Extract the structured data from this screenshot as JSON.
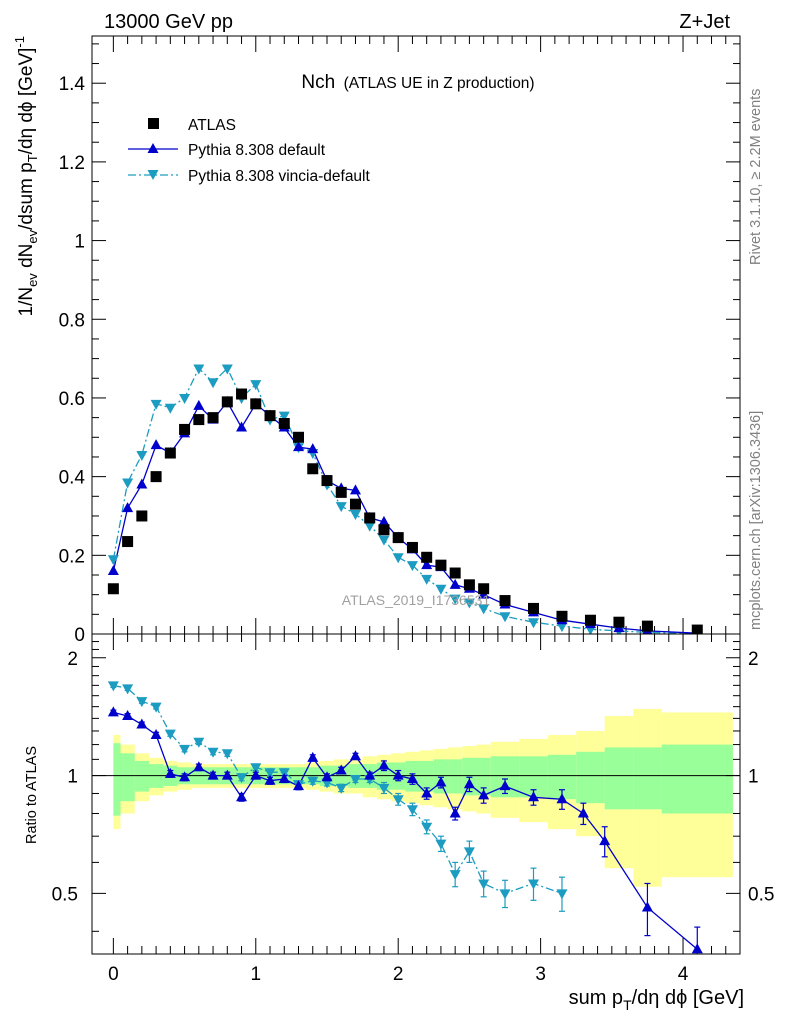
{
  "header": {
    "left": "13000 GeV pp",
    "right": "Z+Jet"
  },
  "side": {
    "rivet": "Rivet 3.1.10, ≥ 2.2M events",
    "mcplots": "mcplots.cern.ch [arXiv:1306.3436]"
  },
  "watermark": "ATLAS_2019_I1736531",
  "colors": {
    "atlas": "#000000",
    "default": "#0000cc",
    "vincia": "#1c9cc0",
    "band_inner": "#99ff99",
    "band_outer": "#ffff99"
  },
  "chart_data": [
    {
      "type": "scatter",
      "title": "Nch",
      "subtitle": "(ATLAS UE in Z production)",
      "ylabel_parts": [
        "1/N",
        "ev",
        " dN",
        "ev",
        "/dsum p",
        "T",
        "/dη dϕ  [GeV]",
        "-1"
      ],
      "xlim": [
        -0.15,
        4.4
      ],
      "ylim": [
        0,
        1.52
      ],
      "yticks": [
        "0",
        "0.2",
        "0.4",
        "0.6",
        "0.8",
        "1",
        "1.2",
        "1.4"
      ],
      "legend_position": "top-left",
      "series": [
        {
          "name": "ATLAS",
          "marker": "square",
          "x": [
            0,
            0.1,
            0.2,
            0.3,
            0.4,
            0.5,
            0.6,
            0.7,
            0.8,
            0.9,
            1.0,
            1.1,
            1.2,
            1.3,
            1.4,
            1.5,
            1.6,
            1.7,
            1.8,
            1.9,
            2.0,
            2.1,
            2.2,
            2.3,
            2.4,
            2.5,
            2.6,
            2.75,
            2.95,
            3.15,
            3.35,
            3.55,
            3.75,
            4.1
          ],
          "values": [
            0.115,
            0.235,
            0.3,
            0.4,
            0.46,
            0.52,
            0.545,
            0.55,
            0.59,
            0.61,
            0.585,
            0.555,
            0.535,
            0.5,
            0.42,
            0.39,
            0.36,
            0.33,
            0.295,
            0.265,
            0.245,
            0.22,
            0.195,
            0.175,
            0.155,
            0.125,
            0.115,
            0.085,
            0.065,
            0.045,
            0.035,
            0.03,
            0.02,
            0.01
          ]
        },
        {
          "name": "Pythia 8.308 default",
          "marker": "triangle-up",
          "line": "solid",
          "x": [
            0,
            0.1,
            0.2,
            0.3,
            0.4,
            0.5,
            0.6,
            0.7,
            0.8,
            0.9,
            1.0,
            1.1,
            1.2,
            1.3,
            1.4,
            1.5,
            1.6,
            1.7,
            1.8,
            1.9,
            2.0,
            2.1,
            2.2,
            2.3,
            2.4,
            2.5,
            2.6,
            2.75,
            2.95,
            3.15,
            3.35,
            3.55,
            3.75,
            4.1
          ],
          "values": [
            0.16,
            0.32,
            0.38,
            0.48,
            0.46,
            0.51,
            0.58,
            0.545,
            0.59,
            0.525,
            0.585,
            0.555,
            0.525,
            0.475,
            0.47,
            0.39,
            0.37,
            0.365,
            0.295,
            0.285,
            0.245,
            0.215,
            0.175,
            0.17,
            0.125,
            0.115,
            0.1,
            0.075,
            0.055,
            0.035,
            0.025,
            0.015,
            0.008,
            0.002
          ]
        },
        {
          "name": "Pythia 8.308 vincia-default",
          "marker": "triangle-down",
          "line": "dashdot",
          "x": [
            0,
            0.1,
            0.2,
            0.3,
            0.4,
            0.5,
            0.6,
            0.7,
            0.8,
            0.9,
            1.0,
            1.1,
            1.2,
            1.3,
            1.4,
            1.5,
            1.6,
            1.7,
            1.8,
            1.9,
            2.0,
            2.1,
            2.2,
            2.3,
            2.4,
            2.5,
            2.6,
            2.75,
            2.95,
            3.15,
            3.35,
            3.55,
            3.75,
            4.1
          ],
          "values": [
            0.19,
            0.385,
            0.455,
            0.585,
            0.575,
            0.6,
            0.675,
            0.64,
            0.675,
            0.6,
            0.635,
            0.545,
            0.555,
            0.475,
            0.46,
            0.38,
            0.325,
            0.305,
            0.275,
            0.24,
            0.195,
            0.175,
            0.14,
            0.115,
            0.09,
            0.08,
            0.065,
            0.045,
            0.03,
            0.02,
            0.012,
            0.008,
            0.004,
            0.001
          ]
        }
      ]
    },
    {
      "type": "scatter",
      "ylabel": "Ratio to ATLAS",
      "xlabel_parts": [
        "sum p",
        "T",
        "/dη dϕ [GeV]"
      ],
      "xlim": [
        -0.15,
        4.4
      ],
      "ylim": [
        0.35,
        2.3
      ],
      "yticks": [
        "0.5",
        "1",
        "2"
      ],
      "xticks": [
        "0",
        "1",
        "2",
        "3",
        "4"
      ],
      "bands": {
        "edges": [
          0,
          0.05,
          0.15,
          0.25,
          0.35,
          0.45,
          0.55,
          0.65,
          0.75,
          0.85,
          0.95,
          1.05,
          1.15,
          1.25,
          1.35,
          1.45,
          1.55,
          1.65,
          1.75,
          1.85,
          1.95,
          2.05,
          2.15,
          2.25,
          2.35,
          2.45,
          2.55,
          2.65,
          2.85,
          3.05,
          3.25,
          3.45,
          3.65,
          3.85,
          4.35
        ],
        "inner": [
          0.21,
          0.14,
          0.09,
          0.07,
          0.06,
          0.05,
          0.05,
          0.05,
          0.05,
          0.05,
          0.05,
          0.05,
          0.05,
          0.05,
          0.05,
          0.06,
          0.06,
          0.07,
          0.07,
          0.08,
          0.08,
          0.09,
          0.09,
          0.1,
          0.1,
          0.11,
          0.11,
          0.12,
          0.12,
          0.13,
          0.15,
          0.18,
          0.18,
          0.2
        ],
        "outer": [
          0.27,
          0.2,
          0.14,
          0.11,
          0.09,
          0.08,
          0.07,
          0.07,
          0.07,
          0.07,
          0.07,
          0.07,
          0.07,
          0.07,
          0.08,
          0.09,
          0.1,
          0.1,
          0.12,
          0.13,
          0.14,
          0.15,
          0.16,
          0.17,
          0.18,
          0.19,
          0.2,
          0.22,
          0.24,
          0.27,
          0.3,
          0.42,
          0.48,
          0.45
        ]
      },
      "series": [
        {
          "name": "Pythia 8.308 default",
          "marker": "triangle-up",
          "line": "solid",
          "x": [
            0,
            0.1,
            0.2,
            0.3,
            0.4,
            0.5,
            0.6,
            0.7,
            0.8,
            0.9,
            1.0,
            1.1,
            1.2,
            1.3,
            1.4,
            1.5,
            1.6,
            1.7,
            1.8,
            1.9,
            2.0,
            2.1,
            2.2,
            2.3,
            2.4,
            2.5,
            2.6,
            2.75,
            2.95,
            3.15,
            3.3,
            3.45,
            3.75,
            4.1
          ],
          "values": [
            1.45,
            1.42,
            1.35,
            1.27,
            1.01,
            0.99,
            1.05,
            1.0,
            1.0,
            0.88,
            1.0,
            0.97,
            0.98,
            0.94,
            1.11,
            0.99,
            1.03,
            1.12,
            1.0,
            1.06,
            1.0,
            0.98,
            0.9,
            0.96,
            0.8,
            0.95,
            0.89,
            0.94,
            0.88,
            0.87,
            0.8,
            0.68,
            0.46,
            0.36
          ],
          "err": [
            0.02,
            0.02,
            0.02,
            0.02,
            0.02,
            0.02,
            0.02,
            0.02,
            0.02,
            0.02,
            0.02,
            0.02,
            0.02,
            0.02,
            0.02,
            0.02,
            0.02,
            0.02,
            0.02,
            0.03,
            0.03,
            0.03,
            0.03,
            0.03,
            0.03,
            0.04,
            0.04,
            0.04,
            0.04,
            0.05,
            0.05,
            0.06,
            0.07,
            0.05
          ]
        },
        {
          "name": "Pythia 8.308 vincia-default",
          "marker": "triangle-down",
          "line": "dashdot",
          "x": [
            0,
            0.1,
            0.2,
            0.3,
            0.4,
            0.5,
            0.6,
            0.7,
            0.8,
            0.9,
            1.0,
            1.1,
            1.2,
            1.3,
            1.4,
            1.5,
            1.6,
            1.7,
            1.8,
            1.9,
            2.0,
            2.1,
            2.2,
            2.3,
            2.4,
            2.5,
            2.6,
            2.75,
            2.95,
            3.15
          ],
          "values": [
            1.7,
            1.67,
            1.55,
            1.5,
            1.28,
            1.17,
            1.22,
            1.15,
            1.14,
            0.99,
            1.05,
            1.02,
            1.02,
            0.95,
            0.97,
            0.96,
            0.93,
            0.98,
            0.98,
            0.93,
            0.87,
            0.82,
            0.74,
            0.67,
            0.56,
            0.64,
            0.53,
            0.5,
            0.53,
            0.5
          ],
          "err": [
            0.02,
            0.02,
            0.02,
            0.02,
            0.02,
            0.02,
            0.02,
            0.02,
            0.02,
            0.02,
            0.02,
            0.02,
            0.02,
            0.02,
            0.02,
            0.02,
            0.02,
            0.02,
            0.02,
            0.03,
            0.03,
            0.03,
            0.03,
            0.03,
            0.04,
            0.04,
            0.04,
            0.04,
            0.05,
            0.05
          ]
        }
      ]
    }
  ]
}
